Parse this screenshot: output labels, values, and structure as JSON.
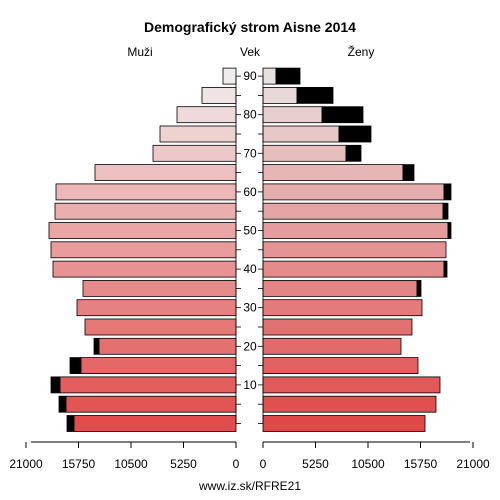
{
  "chart_data": {
    "type": "bar",
    "title": "Demografický strom Aisne 2014",
    "left_label": "Muži",
    "center_label": "Vek",
    "right_label": "Ženy",
    "footer": "www.iz.sk/RFRE21",
    "age_ticks": [
      "10",
      "20",
      "30",
      "40",
      "50",
      "60",
      "70",
      "80",
      "90"
    ],
    "x_ticks": [
      "21000",
      "15750",
      "10500",
      "5250",
      "0",
      "0",
      "5250",
      "10500",
      "15750",
      "21000"
    ],
    "xlim": [
      0,
      21000
    ],
    "age_groups": [
      "0-4",
      "5-9",
      "10-14",
      "15-19",
      "20-24",
      "25-29",
      "30-34",
      "35-39",
      "40-44",
      "45-49",
      "50-54",
      "55-59",
      "60-64",
      "65-69",
      "70-74",
      "75-79",
      "80-84",
      "85-89",
      "90+"
    ],
    "series": [
      {
        "name": "Muži",
        "values": [
          16200,
          17000,
          17600,
          15500,
          13700,
          15100,
          15900,
          15300,
          18300,
          18500,
          18700,
          18100,
          18000,
          14100,
          8300,
          7600,
          5900,
          3400,
          1300
        ],
        "excess": [
          700,
          700,
          900,
          1100,
          500,
          0,
          0,
          0,
          0,
          0,
          0,
          0,
          0,
          0,
          0,
          0,
          0,
          0,
          0
        ]
      },
      {
        "name": "Ženy",
        "values": [
          16200,
          17300,
          17700,
          15500,
          13800,
          14900,
          15900,
          15400,
          18100,
          18300,
          18500,
          18000,
          18100,
          14000,
          8300,
          7600,
          5900,
          3400,
          1300
        ],
        "excess": [
          0,
          0,
          0,
          0,
          0,
          0,
          0,
          400,
          300,
          0,
          300,
          500,
          700,
          1100,
          1500,
          3200,
          4100,
          3600,
          2400
        ]
      }
    ]
  }
}
